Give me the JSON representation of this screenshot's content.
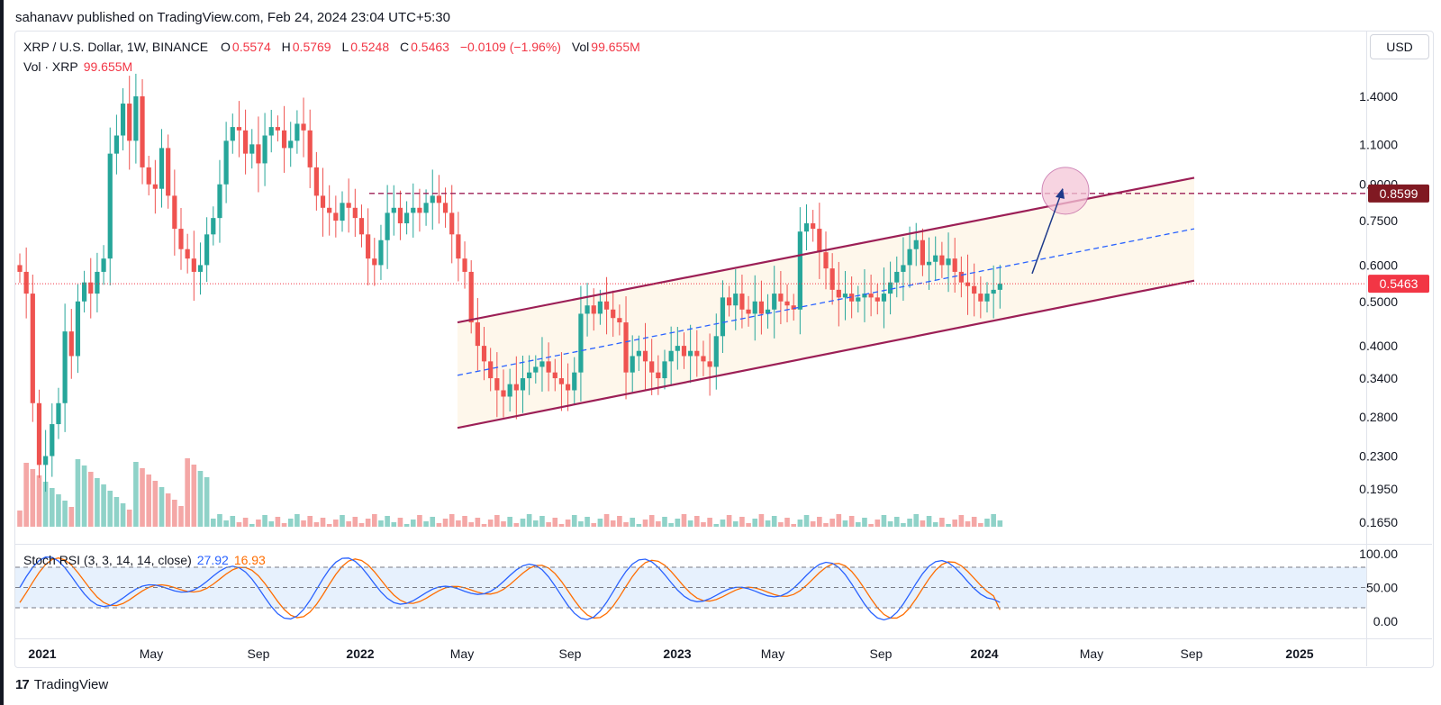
{
  "header": {
    "publish_line": "sahanavv published on TradingView.com, Feb 24, 2024 23:04 UTC+5:30"
  },
  "legend": {
    "symbol": "XRP / U.S. Dollar, 1W, BINANCE",
    "open_label": "O",
    "open": "0.5574",
    "high_label": "H",
    "high": "0.5769",
    "low_label": "L",
    "low": "0.5248",
    "close_label": "C",
    "close": "0.5463",
    "change": "−0.0109 (−1.96%)",
    "vol_label": "Vol",
    "vol": "99.655M"
  },
  "vol_legend": {
    "label": "Vol · XRP",
    "value": "99.655M"
  },
  "rsi_legend": {
    "label": "Stoch RSI (3, 3, 14, 14, close)",
    "k": "27.92",
    "d": "16.93"
  },
  "currency_button": "USD",
  "footer": {
    "logo": "17",
    "brand": "TradingView"
  },
  "colors": {
    "up": "#26a69a",
    "down": "#ef5350",
    "channel": "#9c1f56",
    "midline": "#2962ff",
    "resistance": "#9c1f56",
    "current": "#f23645",
    "k_line": "#2962ff",
    "d_line": "#ff6d00"
  },
  "chart_data": {
    "type": "candlestick",
    "symbol": "XRPUSD",
    "timeframe": "1W",
    "y_scale": "log",
    "price_ticks": [
      "1.4000",
      "1.1000",
      "0.9000",
      "0.7500",
      "0.6000",
      "0.5000",
      "0.4000",
      "0.3400",
      "0.2800",
      "0.2300",
      "0.1950",
      "0.1650"
    ],
    "rsi_ticks": [
      "100.00",
      "50.00",
      "0.00"
    ],
    "time_ticks": [
      {
        "label": "2021",
        "major": true
      },
      {
        "label": "May",
        "major": false
      },
      {
        "label": "Sep",
        "major": false
      },
      {
        "label": "2022",
        "major": true
      },
      {
        "label": "May",
        "major": false
      },
      {
        "label": "Sep",
        "major": false
      },
      {
        "label": "2023",
        "major": true
      },
      {
        "label": "May",
        "major": false
      },
      {
        "label": "Sep",
        "major": false
      },
      {
        "label": "2024",
        "major": true
      },
      {
        "label": "May",
        "major": false
      },
      {
        "label": "Sep",
        "major": false
      },
      {
        "label": "2025",
        "major": true
      }
    ],
    "resistance_level": "0.8599",
    "last_price": "0.5463",
    "closes": [
      0.58,
      0.52,
      0.3,
      0.22,
      0.23,
      0.27,
      0.3,
      0.43,
      0.38,
      0.5,
      0.55,
      0.52,
      0.58,
      0.62,
      1.05,
      1.15,
      1.35,
      1.12,
      1.4,
      0.98,
      0.9,
      0.88,
      1.08,
      0.85,
      0.72,
      0.65,
      0.62,
      0.58,
      0.6,
      0.7,
      0.76,
      0.9,
      1.12,
      1.2,
      1.18,
      1.05,
      1.1,
      1.0,
      1.15,
      1.2,
      1.18,
      1.08,
      1.12,
      1.22,
      1.18,
      0.98,
      0.85,
      0.8,
      0.78,
      0.75,
      0.82,
      0.8,
      0.76,
      0.7,
      0.62,
      0.6,
      0.68,
      0.78,
      0.8,
      0.74,
      0.78,
      0.8,
      0.78,
      0.82,
      0.85,
      0.82,
      0.78,
      0.7,
      0.62,
      0.58,
      0.45,
      0.4,
      0.37,
      0.34,
      0.32,
      0.31,
      0.33,
      0.32,
      0.34,
      0.35,
      0.36,
      0.37,
      0.35,
      0.34,
      0.33,
      0.32,
      0.35,
      0.47,
      0.49,
      0.47,
      0.5,
      0.48,
      0.46,
      0.45,
      0.35,
      0.38,
      0.39,
      0.37,
      0.35,
      0.34,
      0.37,
      0.39,
      0.4,
      0.38,
      0.39,
      0.38,
      0.37,
      0.36,
      0.42,
      0.51,
      0.49,
      0.52,
      0.48,
      0.47,
      0.5,
      0.47,
      0.48,
      0.52,
      0.5,
      0.49,
      0.48,
      0.71,
      0.74,
      0.72,
      0.64,
      0.59,
      0.53,
      0.51,
      0.52,
      0.5,
      0.51,
      0.52,
      0.51,
      0.5,
      0.52,
      0.55,
      0.58,
      0.6,
      0.65,
      0.68,
      0.6,
      0.61,
      0.63,
      0.6,
      0.62,
      0.58,
      0.55,
      0.54,
      0.52,
      0.5,
      0.52,
      0.53,
      0.5463
    ],
    "stoch_rsi_k_final": 27.92,
    "stoch_rsi_d_final": 16.93
  }
}
